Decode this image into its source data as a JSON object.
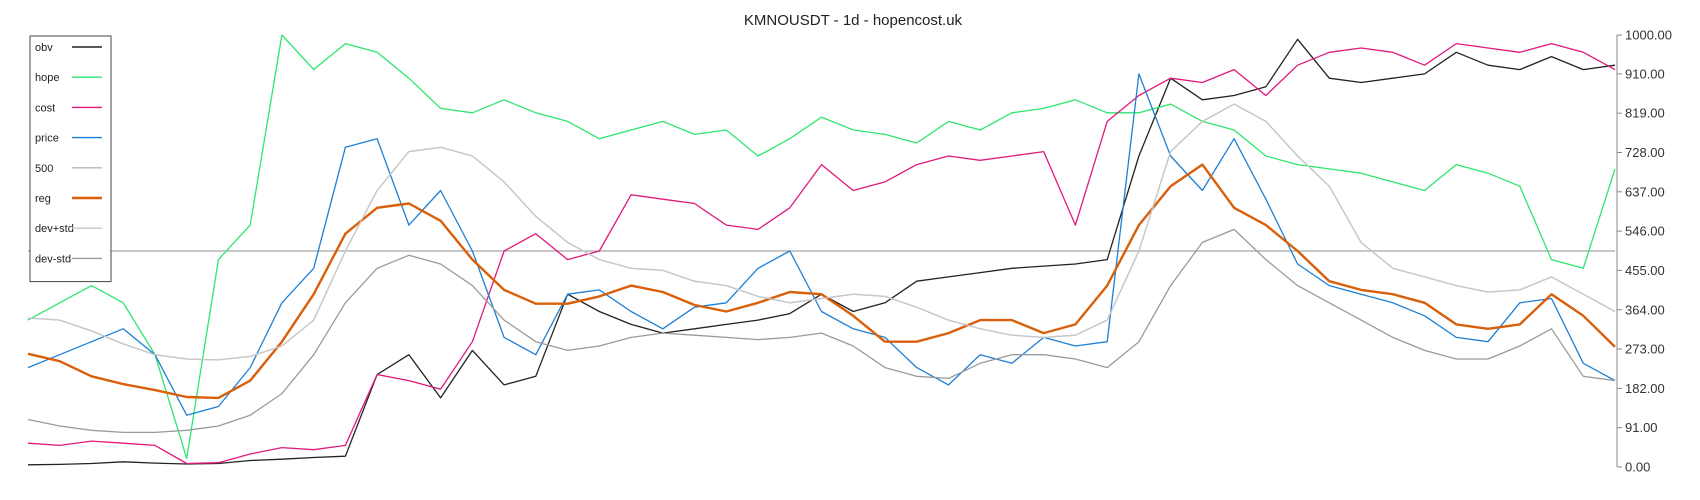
{
  "chart_data": {
    "type": "line",
    "title": "KMNOUSDT - 1d - hopencost.uk",
    "xlabel": "",
    "ylabel": "",
    "ylim": [
      0,
      1000
    ],
    "y_ticks": [
      "0.00",
      "91.00",
      "182.00",
      "273.00",
      "364.00",
      "455.00",
      "546.00",
      "637.00",
      "728.00",
      "819.00",
      "910.00",
      "1000.00"
    ],
    "grid": false,
    "reference_line": 500,
    "legend_position": "top-left",
    "x": [
      0,
      10,
      20,
      30,
      40,
      50,
      60,
      70,
      80,
      90,
      100,
      110,
      120,
      130,
      140,
      150,
      160,
      170,
      180,
      190,
      200,
      210,
      220,
      230,
      240,
      250,
      260,
      270,
      280,
      290,
      300,
      310,
      320,
      330,
      340,
      350,
      360,
      370,
      380,
      390,
      400,
      410,
      420,
      430,
      440,
      450,
      460,
      470,
      480,
      490,
      500
    ],
    "series": [
      {
        "name": "obv",
        "color": "#222222",
        "values": [
          5,
          6,
          8,
          12,
          9,
          7,
          8,
          15,
          18,
          22,
          25,
          214,
          260,
          160,
          270,
          190,
          210,
          400,
          360,
          330,
          310,
          320,
          330,
          340,
          355,
          400,
          360,
          380,
          430,
          440,
          450,
          460,
          465,
          470,
          480,
          720,
          900,
          850,
          860,
          880,
          990,
          900,
          890,
          900,
          910,
          960,
          930,
          920,
          950,
          920,
          930
        ]
      },
      {
        "name": "hope",
        "color": "#2ee66f",
        "values": [
          340,
          380,
          420,
          380,
          260,
          20,
          480,
          560,
          1000,
          920,
          980,
          960,
          900,
          830,
          820,
          850,
          820,
          800,
          760,
          780,
          800,
          770,
          780,
          720,
          760,
          810,
          780,
          770,
          750,
          800,
          780,
          820,
          830,
          850,
          820,
          820,
          840,
          800,
          780,
          720,
          700,
          690,
          680,
          660,
          640,
          700,
          680,
          650,
          480,
          460,
          690
        ]
      },
      {
        "name": "cost",
        "color": "#e0197d",
        "values": [
          55,
          50,
          60,
          55,
          50,
          8,
          10,
          30,
          45,
          40,
          50,
          214,
          200,
          180,
          290,
          500,
          540,
          480,
          500,
          630,
          620,
          610,
          560,
          550,
          600,
          700,
          640,
          660,
          700,
          720,
          710,
          720,
          730,
          560,
          800,
          860,
          900,
          890,
          920,
          860,
          930,
          960,
          970,
          960,
          930,
          980,
          970,
          960,
          980,
          960,
          920
        ]
      },
      {
        "name": "price",
        "color": "#1e7fd6",
        "values": [
          230,
          260,
          290,
          320,
          260,
          120,
          140,
          230,
          380,
          460,
          740,
          760,
          560,
          640,
          500,
          300,
          260,
          400,
          410,
          360,
          320,
          370,
          380,
          460,
          500,
          360,
          320,
          300,
          230,
          190,
          260,
          240,
          300,
          280,
          290,
          910,
          720,
          640,
          760,
          620,
          470,
          420,
          400,
          380,
          350,
          300,
          290,
          380,
          390,
          240,
          200
        ]
      },
      {
        "name": "500",
        "color": "#b5b5b5",
        "values": [
          345,
          340,
          315,
          285,
          260,
          250,
          248,
          256,
          280,
          340,
          500,
          640,
          730,
          740,
          720,
          660,
          580,
          520,
          480,
          460,
          455,
          430,
          420,
          395,
          380,
          390,
          400,
          395,
          370,
          340,
          320,
          305,
          300,
          305,
          340,
          500,
          730,
          800,
          840,
          800,
          720,
          650,
          520,
          460,
          440,
          420,
          405,
          410,
          440,
          400,
          360
        ]
      },
      {
        "name": "reg",
        "color": "#d95f0a",
        "values": [
          262,
          245,
          210,
          192,
          178,
          162,
          160,
          200,
          290,
          400,
          540,
          600,
          610,
          570,
          480,
          410,
          378,
          378,
          395,
          420,
          405,
          375,
          360,
          380,
          405,
          400,
          350,
          290,
          290,
          310,
          340,
          340,
          310,
          330,
          420,
          560,
          650,
          700,
          600,
          560,
          500,
          430,
          410,
          400,
          380,
          330,
          320,
          330,
          400,
          350,
          278
        ]
      },
      {
        "name": "dev+std",
        "color": "#c8c8c8",
        "values": [
          345,
          340,
          315,
          285,
          260,
          250,
          248,
          256,
          280,
          340,
          500,
          640,
          730,
          740,
          720,
          660,
          580,
          520,
          480,
          460,
          455,
          430,
          420,
          395,
          380,
          390,
          400,
          395,
          370,
          340,
          320,
          305,
          300,
          305,
          340,
          500,
          730,
          800,
          840,
          800,
          720,
          650,
          520,
          460,
          440,
          420,
          405,
          410,
          440,
          400,
          360
        ]
      },
      {
        "name": "dev-std",
        "color": "#9a9a9a",
        "values": [
          110,
          95,
          85,
          80,
          80,
          85,
          95,
          120,
          170,
          260,
          380,
          460,
          490,
          470,
          420,
          340,
          290,
          270,
          280,
          300,
          310,
          305,
          300,
          295,
          300,
          310,
          280,
          230,
          210,
          205,
          240,
          260,
          260,
          250,
          230,
          290,
          420,
          520,
          550,
          480,
          420,
          380,
          340,
          300,
          270,
          250,
          250,
          280,
          320,
          210,
          200
        ]
      }
    ]
  }
}
